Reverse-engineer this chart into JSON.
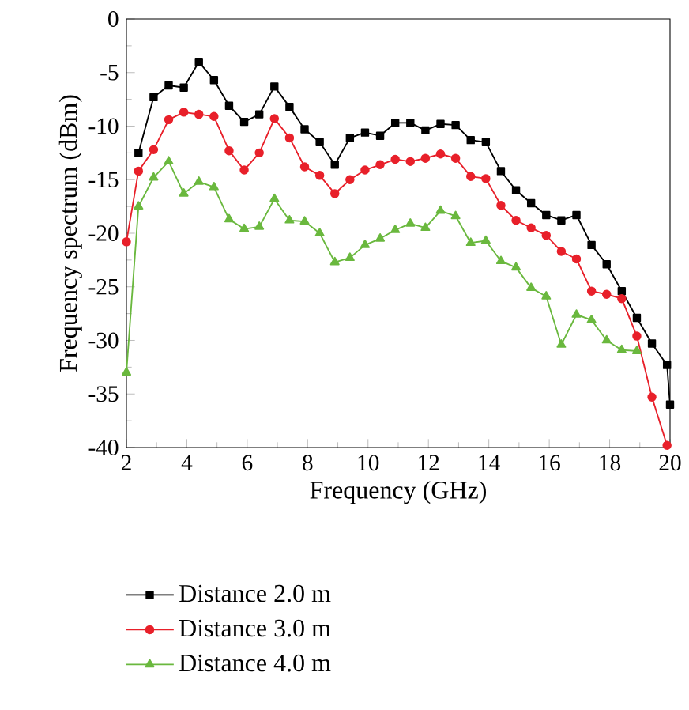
{
  "chart_data": {
    "type": "line",
    "xlabel": "Frequency (GHz)",
    "ylabel": "Frequency spectrum (dBm)",
    "xlim": [
      2,
      20
    ],
    "ylim": [
      -40,
      0
    ],
    "xticks": [
      2,
      4,
      6,
      8,
      10,
      12,
      14,
      16,
      18,
      20
    ],
    "yticks": [
      -40,
      -35,
      -30,
      -25,
      -20,
      -15,
      -10,
      -5,
      0
    ],
    "legend": "bottom",
    "grid": false,
    "line_style": "solid",
    "series": [
      {
        "name": "Distance 2.0 m",
        "color": "#000000",
        "marker": "square",
        "x": [
          2.4,
          2.9,
          3.4,
          3.9,
          4.4,
          4.9,
          5.4,
          5.9,
          6.4,
          6.9,
          7.4,
          7.9,
          8.4,
          8.9,
          9.4,
          9.9,
          10.4,
          10.9,
          11.4,
          11.9,
          12.4,
          12.9,
          13.4,
          13.9,
          14.4,
          14.9,
          15.4,
          15.9,
          16.4,
          16.9,
          17.4,
          17.9,
          18.4,
          18.9,
          19.4,
          19.9,
          20.0
        ],
        "values": [
          -12.5,
          -7.3,
          -6.2,
          -6.4,
          -4.0,
          -5.7,
          -8.1,
          -9.6,
          -8.9,
          -6.3,
          -8.2,
          -10.3,
          -11.5,
          -13.6,
          -11.1,
          -10.6,
          -10.9,
          -9.7,
          -9.7,
          -10.4,
          -9.8,
          -9.9,
          -11.3,
          -11.5,
          -14.2,
          -16.0,
          -17.2,
          -18.3,
          -18.8,
          -18.3,
          -21.1,
          -22.9,
          -25.4,
          -27.9,
          -30.3,
          -32.3,
          -36
        ]
      },
      {
        "name": "Distance 3.0 m",
        "color": "#e8202a",
        "marker": "circle",
        "x": [
          2.0,
          2.4,
          2.9,
          3.4,
          3.9,
          4.4,
          4.9,
          5.4,
          5.9,
          6.4,
          6.9,
          7.4,
          7.9,
          8.4,
          8.9,
          9.4,
          9.9,
          10.4,
          10.9,
          11.4,
          11.9,
          12.4,
          12.9,
          13.4,
          13.9,
          14.4,
          14.9,
          15.4,
          15.9,
          16.4,
          16.9,
          17.4,
          17.9,
          18.4,
          18.9,
          19.4,
          19.9
        ],
        "values": [
          -20.8,
          -14.2,
          -12.2,
          -9.4,
          -8.7,
          -8.9,
          -9.1,
          -12.3,
          -14.1,
          -12.5,
          -9.3,
          -11.1,
          -13.8,
          -14.6,
          -16.3,
          -15.0,
          -14.1,
          -13.6,
          -13.1,
          -13.3,
          -13.0,
          -12.6,
          -13.0,
          -14.7,
          -14.9,
          -17.4,
          -18.8,
          -19.5,
          -20.2,
          -21.7,
          -22.4,
          -25.4,
          -25.7,
          -26.1,
          -29.6,
          -35.3,
          -39.8
        ]
      },
      {
        "name": "Distance 4.0 m",
        "color": "#6ab83e",
        "marker": "triangle",
        "x": [
          2.0,
          2.4,
          2.9,
          3.4,
          3.9,
          4.4,
          4.9,
          5.4,
          5.9,
          6.4,
          6.9,
          7.4,
          7.9,
          8.4,
          8.9,
          9.4,
          9.9,
          10.4,
          10.9,
          11.4,
          11.9,
          12.4,
          12.9,
          13.4,
          13.9,
          14.4,
          14.9,
          15.4,
          15.9,
          16.4,
          16.9,
          17.4,
          17.9,
          18.4,
          18.9
        ],
        "values": [
          -33.0,
          -17.5,
          -14.8,
          -13.3,
          -16.3,
          -15.2,
          -15.7,
          -18.7,
          -19.6,
          -19.4,
          -16.8,
          -18.8,
          -18.9,
          -20.0,
          -22.7,
          -22.3,
          -21.1,
          -20.5,
          -19.7,
          -19.1,
          -19.5,
          -17.9,
          -18.4,
          -20.9,
          -20.7,
          -22.6,
          -23.2,
          -25.1,
          -25.9,
          -30.4,
          -27.6,
          -28.1,
          -30.0,
          -30.9,
          -31.0
        ]
      }
    ]
  }
}
